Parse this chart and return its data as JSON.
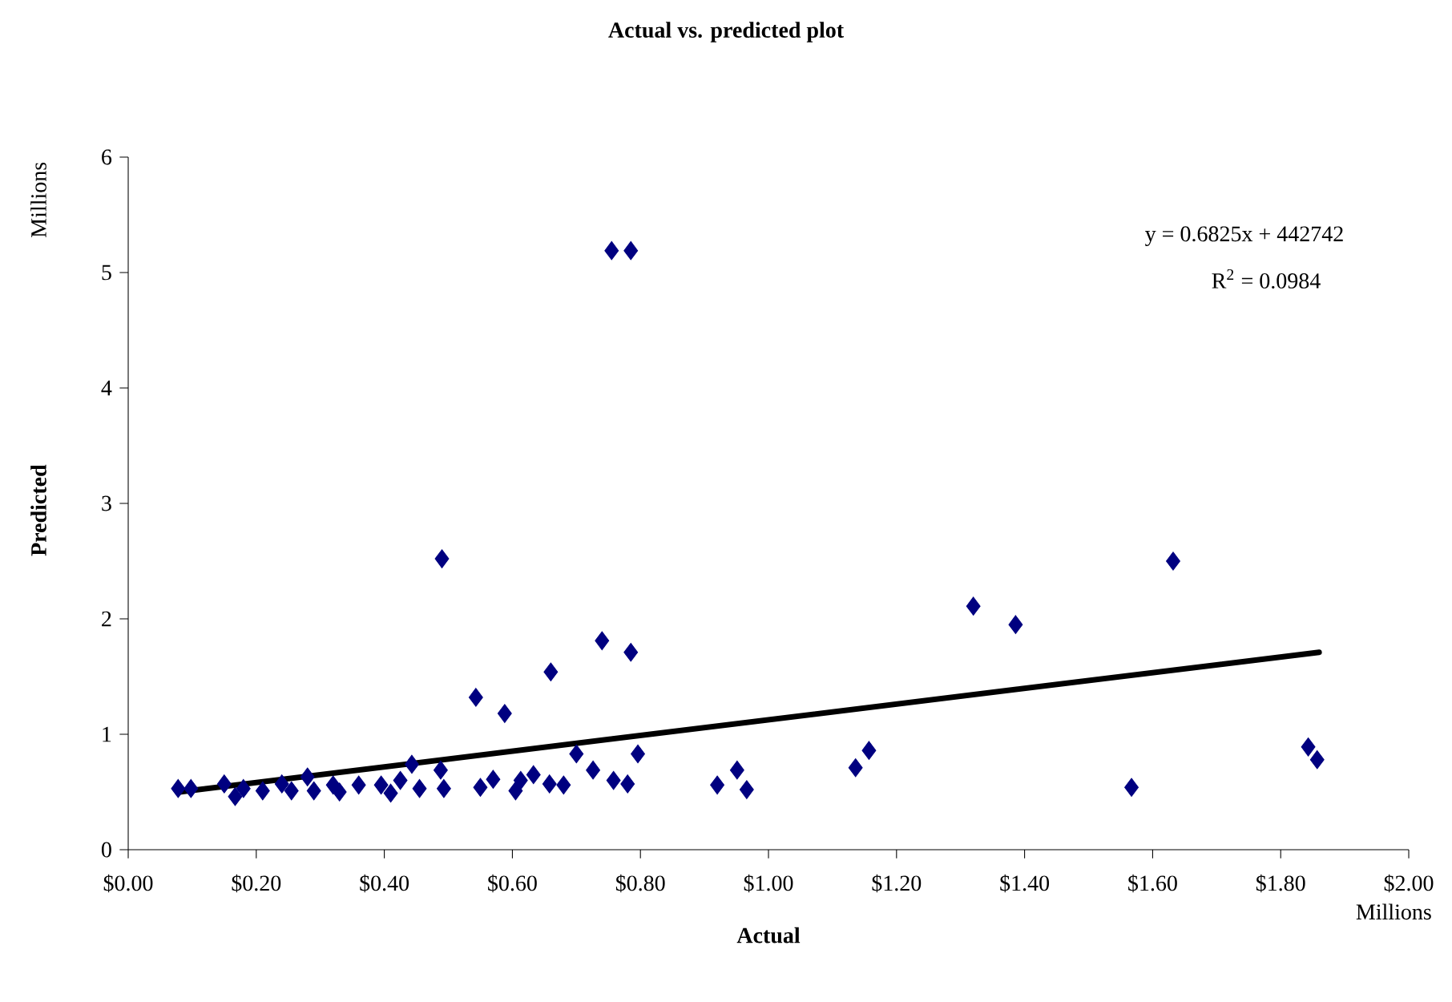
{
  "chart_data": {
    "type": "scatter",
    "title": "Actual vs. predicted plot",
    "xlabel": "Actual",
    "ylabel": "Predicted",
    "grid": false,
    "xlim": [
      0,
      2
    ],
    "ylim": [
      0,
      6
    ],
    "xticks": [
      {
        "value": 0,
        "label": "$0.00"
      },
      {
        "value": 0.2,
        "label": "$0.20"
      },
      {
        "value": 0.4,
        "label": "$0.40"
      },
      {
        "value": 0.6,
        "label": "$0.60"
      },
      {
        "value": 0.8,
        "label": "$0.80"
      },
      {
        "value": 1,
        "label": "$1.00"
      },
      {
        "value": 1.2,
        "label": "$1.20"
      },
      {
        "value": 1.4,
        "label": "$1.40"
      },
      {
        "value": 1.6,
        "label": "$1.60"
      },
      {
        "value": 1.8,
        "label": "$1.80"
      },
      {
        "value": 2,
        "label": "$2.00"
      }
    ],
    "yticks": [
      0,
      1,
      2,
      3,
      4,
      5,
      6
    ],
    "annotations": [
      "y = 0.6825x + 442742",
      "R$^{2}$ = 0.0984",
      "Millions",
      "Millions"
    ],
    "series": [
      {
        "marker": "diamond",
        "color": "#000080",
        "x": [
          0.078,
          0.098,
          0.15,
          0.167,
          0.18,
          0.21,
          0.24,
          0.255,
          0.28,
          0.29,
          0.32,
          0.33,
          0.36,
          0.395,
          0.41,
          0.425,
          0.443,
          0.455,
          0.488,
          0.493,
          0.49,
          0.543,
          0.55,
          0.57,
          0.588,
          0.605,
          0.613,
          0.633,
          0.658,
          0.66,
          0.68,
          0.7,
          0.726,
          0.74,
          0.755,
          0.758,
          0.78,
          0.785,
          0.785,
          0.796,
          0.92,
          0.951,
          0.966,
          1.136,
          1.157,
          1.32,
          1.386,
          1.567,
          1.632,
          1.843,
          1.857
        ],
        "values": [
          0.53,
          0.53,
          0.57,
          0.46,
          0.53,
          0.51,
          0.57,
          0.51,
          0.63,
          0.51,
          0.56,
          0.5,
          0.56,
          0.56,
          0.49,
          0.6,
          0.74,
          0.53,
          0.69,
          0.53,
          2.52,
          1.32,
          0.54,
          0.61,
          1.18,
          0.51,
          0.6,
          0.65,
          0.57,
          1.54,
          0.56,
          0.83,
          0.69,
          1.81,
          5.19,
          0.6,
          0.57,
          5.19,
          1.71,
          0.83,
          0.56,
          0.69,
          0.52,
          0.71,
          0.86,
          2.11,
          1.95,
          0.54,
          2.5,
          0.89,
          0.78
        ]
      },
      {
        "type": "line",
        "marker": "none",
        "color": "#000000",
        "x": [
          0.08,
          1.86
        ],
        "values": [
          0.5,
          1.71
        ]
      }
    ]
  }
}
